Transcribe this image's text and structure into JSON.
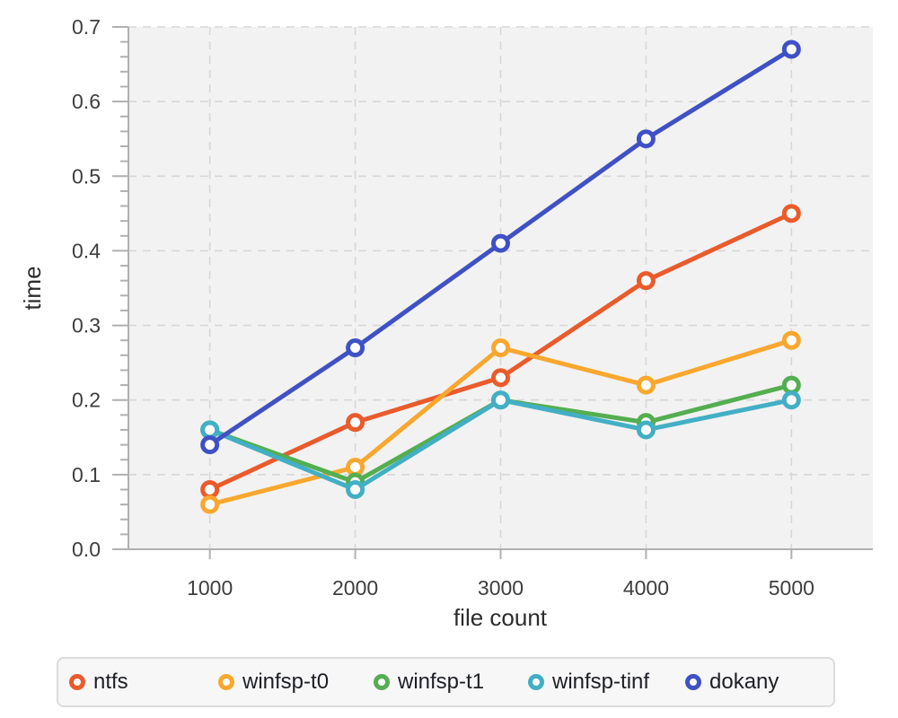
{
  "chart_data": {
    "type": "line",
    "title": "",
    "xlabel": "file count",
    "ylabel": "time",
    "x": [
      1000,
      2000,
      3000,
      4000,
      5000
    ],
    "xlim": [
      440,
      5560
    ],
    "ylim": [
      0,
      0.7
    ],
    "grid": true,
    "legend_position": "bottom",
    "xticks": {
      "values": [
        1000,
        2000,
        3000,
        4000,
        5000
      ],
      "labels": [
        "1000",
        "2000",
        "3000",
        "4000",
        "5000"
      ]
    },
    "yticks": {
      "values": [
        0.0,
        0.1,
        0.2,
        0.3,
        0.4,
        0.5,
        0.6,
        0.7
      ],
      "labels": [
        "0.0",
        "0.1",
        "0.2",
        "0.3",
        "0.4",
        "0.5",
        "0.6",
        "0.7"
      ]
    },
    "y_minor_tick_step": 0.02,
    "series": [
      {
        "name": "ntfs",
        "color": "#ea5b2c",
        "values": [
          0.08,
          0.17,
          0.23,
          0.36,
          0.45
        ]
      },
      {
        "name": "winfsp-t0",
        "color": "#f9a72e",
        "values": [
          0.06,
          0.11,
          0.27,
          0.22,
          0.28
        ]
      },
      {
        "name": "winfsp-t1",
        "color": "#54ae50",
        "values": [
          0.16,
          0.09,
          0.2,
          0.17,
          0.22
        ]
      },
      {
        "name": "winfsp-tinf",
        "color": "#42afc5",
        "values": [
          0.16,
          0.08,
          0.2,
          0.16,
          0.2
        ]
      },
      {
        "name": "dokany",
        "color": "#3f51c4",
        "values": [
          0.14,
          0.27,
          0.41,
          0.55,
          0.67
        ]
      }
    ],
    "colors": {
      "plot_background": "#f2f2f2",
      "gridline": "#d7d7d7",
      "axis": "#b0b0b0",
      "marker_fill": "#ffffff"
    }
  }
}
